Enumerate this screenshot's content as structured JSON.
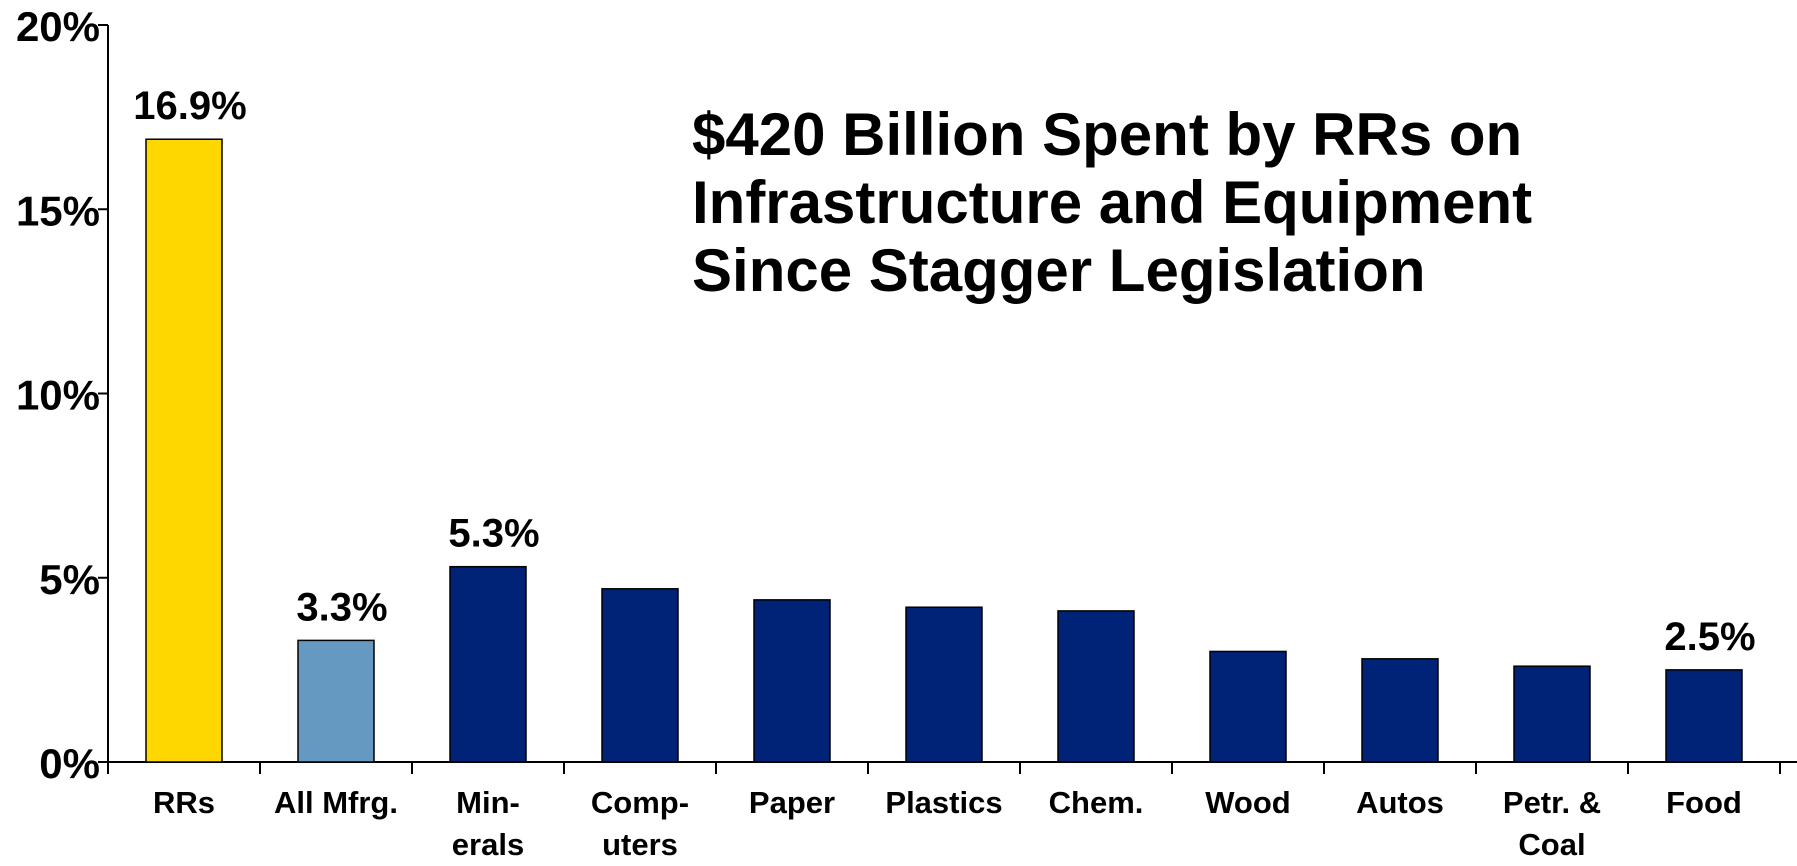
{
  "chart_data": {
    "type": "bar",
    "title_lines": [
      "$420 Billion Spent by RRs on",
      "Infrastructure and Equipment",
      "Since Stagger Legislation"
    ],
    "categories": [
      [
        "RRs"
      ],
      [
        "All Mfrg."
      ],
      [
        "Min-",
        "erals"
      ],
      [
        "Comp-",
        "uters"
      ],
      [
        "Paper"
      ],
      [
        "Plastics"
      ],
      [
        "Chem."
      ],
      [
        "Wood"
      ],
      [
        "Autos"
      ],
      [
        "Petr. &",
        "Coal"
      ],
      [
        "Food"
      ]
    ],
    "values": [
      16.9,
      3.3,
      5.3,
      4.7,
      4.4,
      4.2,
      4.1,
      3.0,
      2.8,
      2.6,
      2.5
    ],
    "data_labels": [
      "16.9%",
      "3.3%",
      "5.3%",
      "",
      "",
      "",
      "",
      "",
      "",
      "",
      "2.5%"
    ],
    "bar_colors": [
      "#FFD700",
      "#6699C2",
      "#002277",
      "#002277",
      "#002277",
      "#002277",
      "#002277",
      "#002277",
      "#002277",
      "#002277",
      "#002277"
    ],
    "y_ticks": [
      0,
      5,
      10,
      15,
      20
    ],
    "y_tick_labels": [
      "0%",
      "5%",
      "10%",
      "15%",
      "20%"
    ],
    "ylim": [
      0,
      20
    ],
    "xlabel": "",
    "ylabel": "",
    "grid": false,
    "legend": "none"
  }
}
